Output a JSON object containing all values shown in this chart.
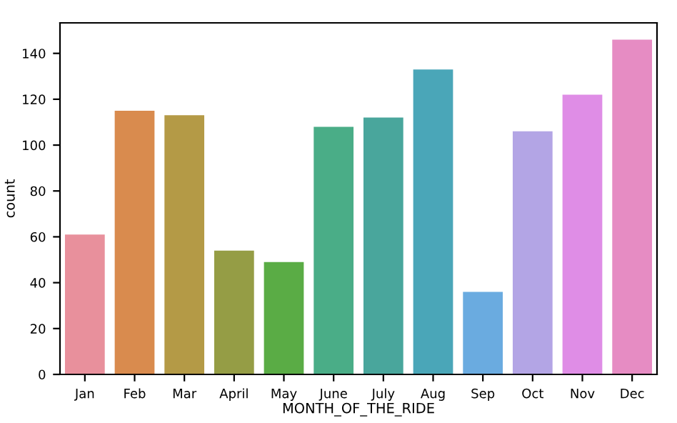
{
  "chart_data": {
    "type": "bar",
    "xlabel": "MONTH_OF_THE_RIDE",
    "ylabel": "count",
    "categories": [
      "Jan",
      "Feb",
      "Mar",
      "April",
      "May",
      "June",
      "July",
      "Aug",
      "Sep",
      "Oct",
      "Nov",
      "Dec"
    ],
    "values": [
      61,
      115,
      113,
      54,
      49,
      108,
      112,
      133,
      36,
      106,
      122,
      146
    ],
    "colors": [
      "#e8909c",
      "#d98b4e",
      "#b49a46",
      "#959d45",
      "#5aac45",
      "#4aad87",
      "#49a69c",
      "#4aa6b8",
      "#6aabe0",
      "#b3a5e5",
      "#df8de6",
      "#e68cc3"
    ],
    "ylim": [
      0,
      153.3
    ],
    "yticks": [
      0,
      20,
      40,
      60,
      80,
      100,
      120,
      140
    ],
    "grid": false
  }
}
